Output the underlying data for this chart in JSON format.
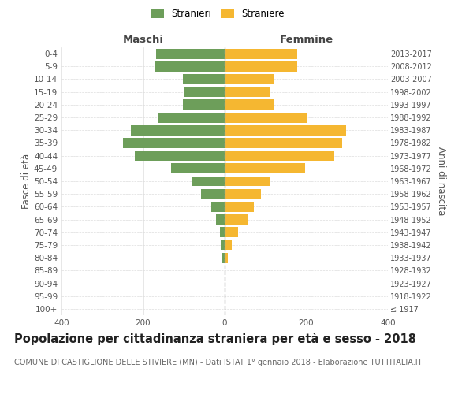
{
  "age_groups": [
    "100+",
    "95-99",
    "90-94",
    "85-89",
    "80-84",
    "75-79",
    "70-74",
    "65-69",
    "60-64",
    "55-59",
    "50-54",
    "45-49",
    "40-44",
    "35-39",
    "30-34",
    "25-29",
    "20-24",
    "15-19",
    "10-14",
    "5-9",
    "0-4"
  ],
  "birth_years": [
    "≤ 1917",
    "1918-1922",
    "1923-1927",
    "1928-1932",
    "1933-1937",
    "1938-1942",
    "1943-1947",
    "1948-1952",
    "1953-1957",
    "1958-1962",
    "1963-1967",
    "1968-1972",
    "1973-1977",
    "1978-1982",
    "1983-1987",
    "1988-1992",
    "1993-1997",
    "1998-2002",
    "2003-2007",
    "2008-2012",
    "2013-2017"
  ],
  "males": [
    0,
    0,
    0,
    0,
    5,
    10,
    12,
    22,
    32,
    58,
    82,
    132,
    220,
    250,
    230,
    162,
    102,
    98,
    102,
    172,
    168
  ],
  "females": [
    0,
    0,
    0,
    2,
    8,
    18,
    32,
    58,
    72,
    88,
    112,
    198,
    268,
    288,
    298,
    202,
    122,
    112,
    122,
    178,
    178
  ],
  "male_color": "#6d9e5a",
  "female_color": "#f5b731",
  "center_line_color": "#aaaaaa",
  "grid_color": "#dddddd",
  "bg_color": "#ffffff",
  "title": "Popolazione per cittadinanza straniera per età e sesso - 2018",
  "subtitle": "COMUNE DI CASTIGLIONE DELLE STIVIERE (MN) - Dati ISTAT 1° gennaio 2018 - Elaborazione TUTTITALIA.IT",
  "ylabel_left": "Fasce di età",
  "ylabel_right": "Anni di nascita",
  "label_maschi": "Maschi",
  "label_femmine": "Femmine",
  "legend_stranieri": "Stranieri",
  "legend_straniere": "Straniere",
  "xlim": 400,
  "title_fontsize": 10.5,
  "subtitle_fontsize": 7.0,
  "header_fontsize": 9.5,
  "tick_fontsize": 7.5,
  "axis_label_fontsize": 8.5,
  "legend_fontsize": 8.5
}
